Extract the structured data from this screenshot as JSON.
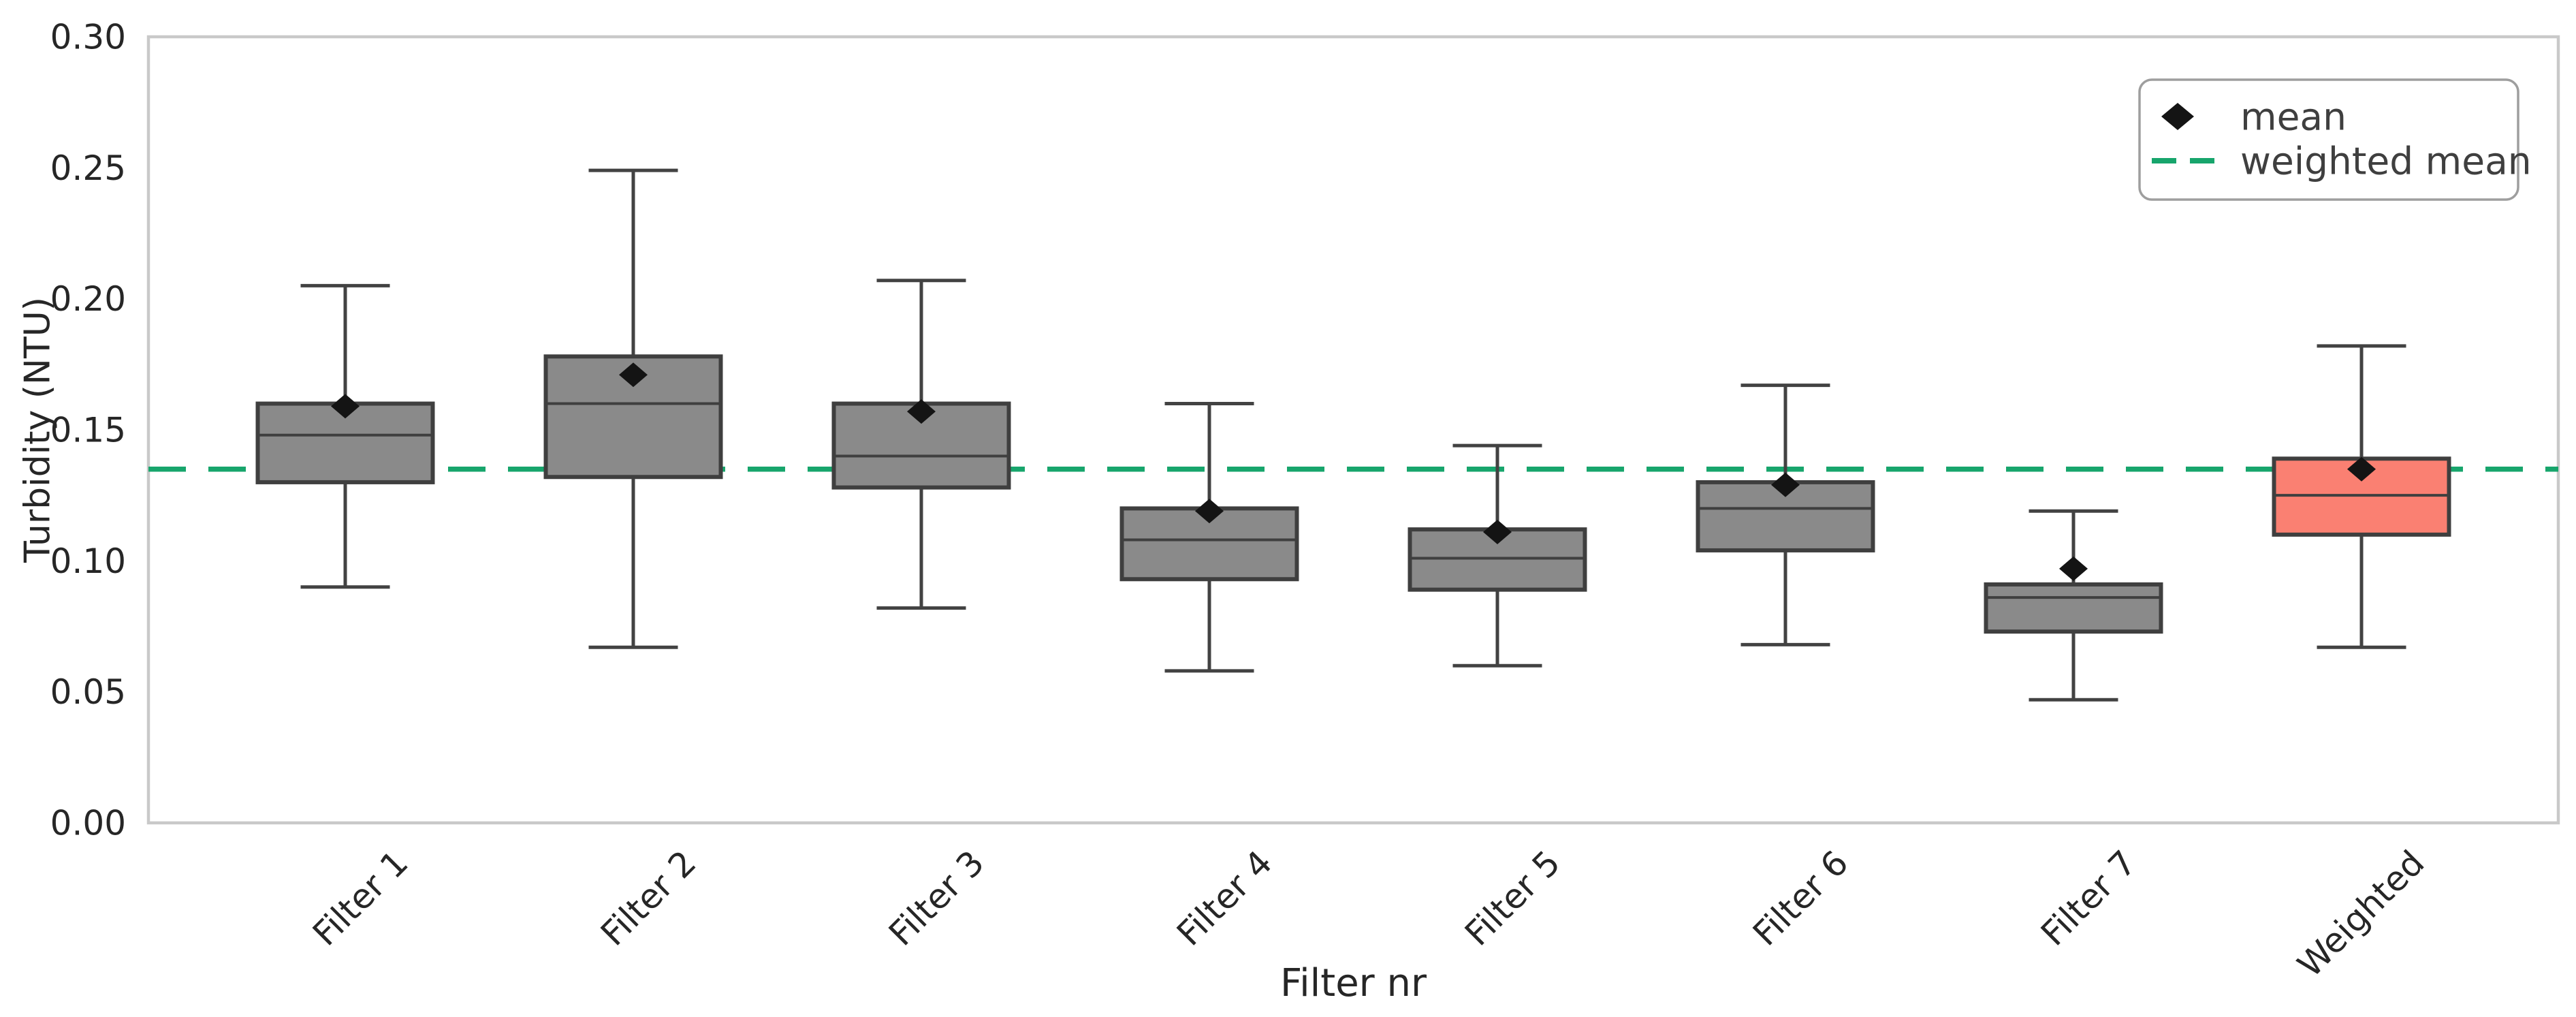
{
  "chart_data": {
    "type": "boxplot",
    "title": "",
    "xlabel": "Filter nr",
    "ylabel": "Turbidity (NTU)",
    "ylim": [
      0.0,
      0.3
    ],
    "ytick_labels": [
      "0.00",
      "0.05",
      "0.10",
      "0.15",
      "0.20",
      "0.25",
      "0.30"
    ],
    "categories": [
      "Filter 1",
      "Filter 2",
      "Filter 3",
      "Filter 4",
      "Filter 5",
      "Filter 6",
      "Filter 7",
      "Weighted"
    ],
    "weighted_mean_value": 0.135,
    "grid": "off",
    "legend_position": "upper right",
    "legend": {
      "mean_label": "mean",
      "weighted_mean_label": "weighted mean"
    },
    "boxes": [
      {
        "label": "Filter 1",
        "whisker_low": 0.09,
        "q1": 0.13,
        "median": 0.148,
        "q3": 0.16,
        "whisker_high": 0.205,
        "mean": 0.159,
        "highlight": false
      },
      {
        "label": "Filter 2",
        "whisker_low": 0.067,
        "q1": 0.132,
        "median": 0.16,
        "q3": 0.178,
        "whisker_high": 0.249,
        "mean": 0.171,
        "highlight": false
      },
      {
        "label": "Filter 3",
        "whisker_low": 0.082,
        "q1": 0.128,
        "median": 0.14,
        "q3": 0.16,
        "whisker_high": 0.207,
        "mean": 0.157,
        "highlight": false
      },
      {
        "label": "Filter 4",
        "whisker_low": 0.058,
        "q1": 0.093,
        "median": 0.108,
        "q3": 0.12,
        "whisker_high": 0.16,
        "mean": 0.119,
        "highlight": false
      },
      {
        "label": "Filter 5",
        "whisker_low": 0.06,
        "q1": 0.089,
        "median": 0.101,
        "q3": 0.112,
        "whisker_high": 0.144,
        "mean": 0.111,
        "highlight": false
      },
      {
        "label": "Filter 6",
        "whisker_low": 0.068,
        "q1": 0.104,
        "median": 0.12,
        "q3": 0.13,
        "whisker_high": 0.167,
        "mean": 0.129,
        "highlight": false
      },
      {
        "label": "Filter 7",
        "whisker_low": 0.047,
        "q1": 0.073,
        "median": 0.086,
        "q3": 0.091,
        "whisker_high": 0.119,
        "mean": 0.097,
        "highlight": false
      },
      {
        "label": "Weighted",
        "whisker_low": 0.067,
        "q1": 0.11,
        "median": 0.125,
        "q3": 0.139,
        "whisker_high": 0.182,
        "mean": 0.135,
        "highlight": true
      }
    ],
    "colors": {
      "box_fill": "#8a8a8a",
      "highlight_box_fill": "#fa8072",
      "box_edge": "#3f3f3f",
      "whisker": "#424242",
      "median_line": "#3f3f3f",
      "mean_marker": "#141414",
      "weighted_mean_line": "#17a56c",
      "plot_border": "#c9c9c9",
      "tick_text": "#262626",
      "legend_text": "#3f3f3f",
      "legend_border": "#9e9e9e",
      "background": "#ffffff"
    }
  }
}
